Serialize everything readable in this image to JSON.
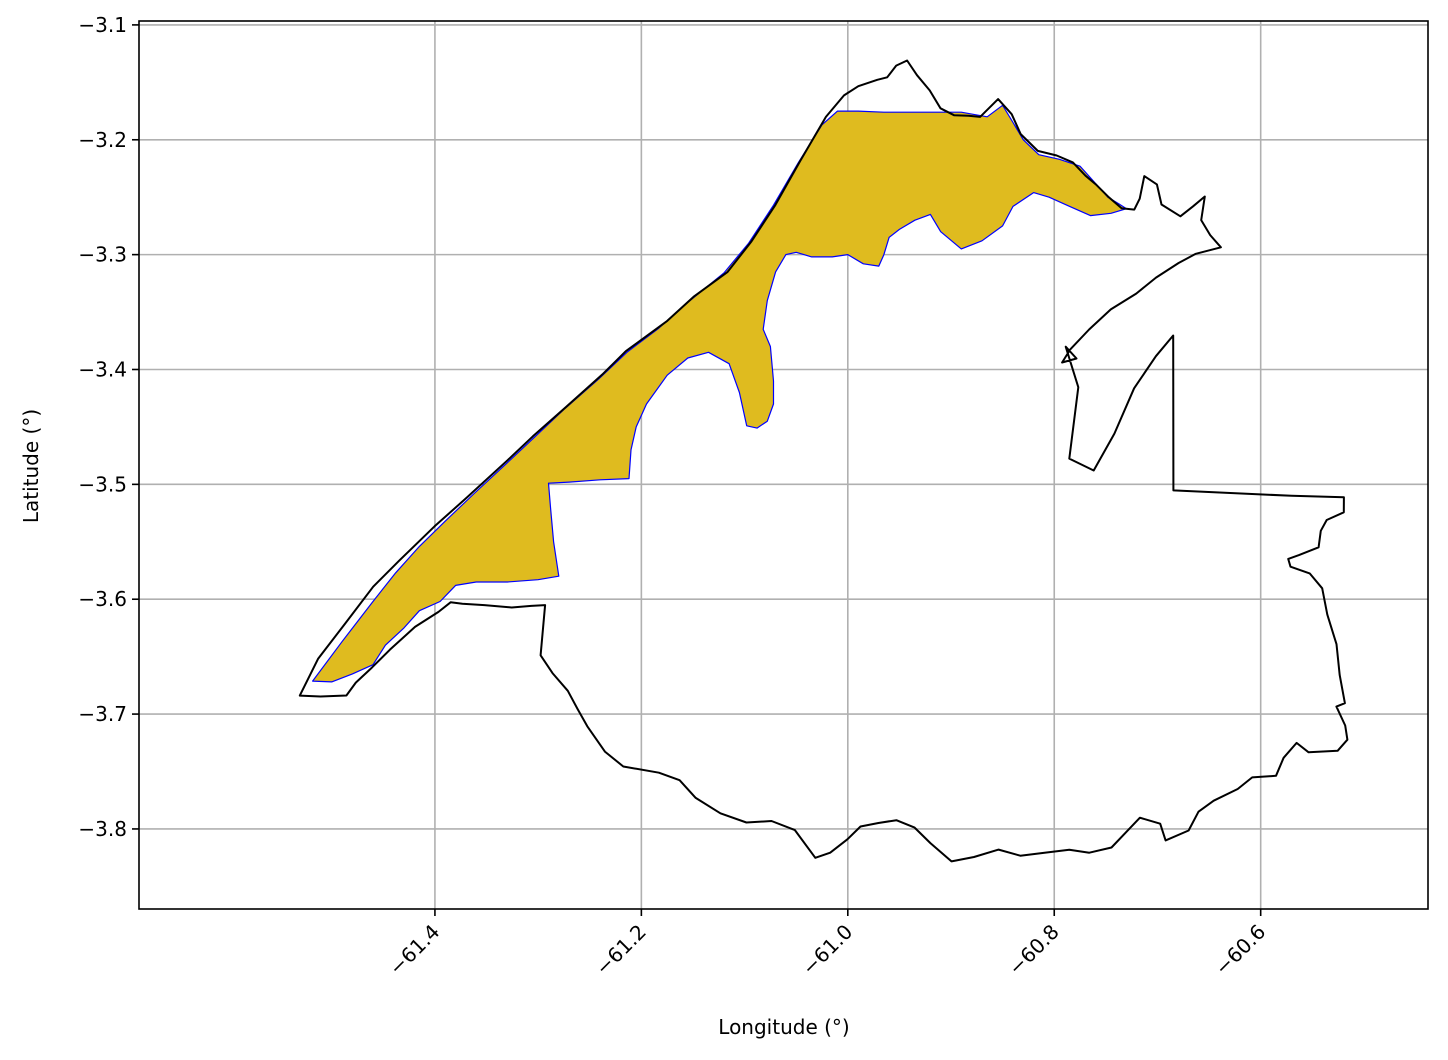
{
  "chart_data": {
    "type": "map",
    "xlabel": "Longitude (°)",
    "ylabel": "Latitude (°)",
    "xlim": [
      -61.6867,
      -60.4379
    ],
    "ylim": [
      -3.8697,
      -3.0966
    ],
    "xticks": [
      -61.4,
      -61.2,
      -61.0,
      -60.8,
      -60.6
    ],
    "xtick_labels": [
      "−61.4",
      "−61.2",
      "−61.0",
      "−60.8",
      "−60.6"
    ],
    "yticks": [
      -3.1,
      -3.2,
      -3.3,
      -3.4,
      -3.5,
      -3.6,
      -3.7,
      -3.8
    ],
    "ytick_labels": [
      "−3.1",
      "−3.2",
      "−3.3",
      "−3.4",
      "−3.5",
      "−3.6",
      "−3.7",
      "−3.8"
    ],
    "grid": true,
    "boundary": {
      "stroke": "#000000",
      "fill": "none",
      "outline": [
        [
          -61.5309,
          -3.6839
        ],
        [
          -61.5131,
          -3.6517
        ],
        [
          -61.4869,
          -3.6211
        ],
        [
          -61.4598,
          -3.5891
        ],
        [
          -61.4344,
          -3.5662
        ],
        [
          -61.4003,
          -3.5365
        ],
        [
          -61.3689,
          -3.5114
        ],
        [
          -61.3296,
          -3.479
        ],
        [
          -61.3051,
          -3.4582
        ],
        [
          -61.2737,
          -3.4332
        ],
        [
          -61.2378,
          -3.4043
        ],
        [
          -61.2151,
          -3.3841
        ],
        [
          -61.175,
          -3.3577
        ],
        [
          -61.1488,
          -3.3363
        ],
        [
          -61.1165,
          -3.315
        ],
        [
          -61.0937,
          -3.2889
        ],
        [
          -61.0701,
          -3.2567
        ],
        [
          -61.0457,
          -3.2179
        ],
        [
          -61.0212,
          -3.1801
        ],
        [
          -61.0037,
          -3.1614
        ],
        [
          -60.9898,
          -3.1534
        ],
        [
          -60.9714,
          -3.1478
        ],
        [
          -60.9618,
          -3.1456
        ],
        [
          -60.9531,
          -3.1354
        ],
        [
          -60.9426,
          -3.131
        ],
        [
          -60.933,
          -3.1438
        ],
        [
          -60.9207,
          -3.157
        ],
        [
          -60.9102,
          -3.1726
        ],
        [
          -60.8971,
          -3.1786
        ],
        [
          -60.8831,
          -3.1791
        ],
        [
          -60.8718,
          -3.1801
        ],
        [
          -60.8544,
          -3.1646
        ],
        [
          -60.8412,
          -3.1777
        ],
        [
          -60.8325,
          -3.1951
        ],
        [
          -60.8159,
          -3.2097
        ],
        [
          -60.7976,
          -3.2137
        ],
        [
          -60.7819,
          -3.2197
        ],
        [
          -60.7697,
          -3.2313
        ],
        [
          -60.7592,
          -3.2393
        ],
        [
          -60.7478,
          -3.2495
        ],
        [
          -60.7347,
          -3.2597
        ],
        [
          -60.7224,
          -3.2608
        ],
        [
          -60.7172,
          -3.2513
        ],
        [
          -60.7128,
          -3.2316
        ],
        [
          -60.7005,
          -3.2389
        ],
        [
          -60.6961,
          -3.2564
        ],
        [
          -60.6778,
          -3.2666
        ],
        [
          -60.6655,
          -3.2579
        ],
        [
          -60.6541,
          -3.2494
        ],
        [
          -60.6576,
          -3.2699
        ],
        [
          -60.6489,
          -3.283
        ],
        [
          -60.6385,
          -3.2936
        ],
        [
          -60.6629,
          -3.2993
        ],
        [
          -60.6795,
          -3.3073
        ],
        [
          -60.7014,
          -3.32
        ],
        [
          -60.7206,
          -3.3339
        ],
        [
          -60.7452,
          -3.3477
        ],
        [
          -60.7662,
          -3.3652
        ],
        [
          -60.7846,
          -3.3827
        ],
        [
          -60.7924,
          -3.3939
        ],
        [
          -60.7784,
          -3.3904
        ],
        [
          -60.7889,
          -3.3802
        ],
        [
          -60.7767,
          -3.4154
        ],
        [
          -60.7854,
          -3.4776
        ],
        [
          -60.7618,
          -3.4879
        ],
        [
          -60.7417,
          -3.4558
        ],
        [
          -60.7226,
          -3.4164
        ],
        [
          -60.7015,
          -3.3884
        ],
        [
          -60.6848,
          -3.3704
        ],
        [
          -60.6846,
          -3.5053
        ],
        [
          -60.57,
          -3.51
        ],
        [
          -60.5194,
          -3.5112
        ],
        [
          -60.5195,
          -3.5243
        ],
        [
          -60.536,
          -3.531
        ],
        [
          -60.5418,
          -3.5404
        ],
        [
          -60.5439,
          -3.5548
        ],
        [
          -60.5629,
          -3.5616
        ],
        [
          -60.5733,
          -3.5649
        ],
        [
          -60.5711,
          -3.5717
        ],
        [
          -60.5525,
          -3.5775
        ],
        [
          -60.5404,
          -3.5905
        ],
        [
          -60.5355,
          -3.6134
        ],
        [
          -60.5265,
          -3.6392
        ],
        [
          -60.5234,
          -3.6661
        ],
        [
          -60.5184,
          -3.6905
        ],
        [
          -60.5266,
          -3.6935
        ],
        [
          -60.5181,
          -3.7099
        ],
        [
          -60.516,
          -3.7223
        ],
        [
          -60.5255,
          -3.732
        ],
        [
          -60.5536,
          -3.7333
        ],
        [
          -60.5652,
          -3.7251
        ],
        [
          -60.5778,
          -3.7381
        ],
        [
          -60.5852,
          -3.7537
        ],
        [
          -60.6082,
          -3.7551
        ],
        [
          -60.6223,
          -3.7652
        ],
        [
          -60.6455,
          -3.7754
        ],
        [
          -60.6602,
          -3.785
        ],
        [
          -60.6698,
          -3.8014
        ],
        [
          -60.6921,
          -3.81
        ],
        [
          -60.6973,
          -3.7954
        ],
        [
          -60.717,
          -3.7902
        ],
        [
          -60.7297,
          -3.8021
        ],
        [
          -60.7445,
          -3.8162
        ],
        [
          -60.766,
          -3.8207
        ],
        [
          -60.7854,
          -3.8181
        ],
        [
          -60.8074,
          -3.8205
        ],
        [
          -60.8329,
          -3.8233
        ],
        [
          -60.8539,
          -3.818
        ],
        [
          -60.8777,
          -3.8244
        ],
        [
          -60.8995,
          -3.8283
        ],
        [
          -60.92,
          -3.8123
        ],
        [
          -60.9353,
          -3.7988
        ],
        [
          -60.9529,
          -3.7924
        ],
        [
          -60.9704,
          -3.7948
        ],
        [
          -60.9877,
          -3.7979
        ],
        [
          -61.0004,
          -3.809
        ],
        [
          -61.0171,
          -3.8207
        ],
        [
          -61.0315,
          -3.8251
        ],
        [
          -61.0513,
          -3.801
        ],
        [
          -61.0739,
          -3.7931
        ],
        [
          -61.0982,
          -3.7944
        ],
        [
          -61.1234,
          -3.7864
        ],
        [
          -61.1474,
          -3.773
        ],
        [
          -61.163,
          -3.7576
        ],
        [
          -61.183,
          -3.751
        ],
        [
          -61.2175,
          -3.7456
        ],
        [
          -61.2353,
          -3.7327
        ],
        [
          -61.2524,
          -3.7106
        ],
        [
          -61.2619,
          -3.6955
        ],
        [
          -61.2713,
          -3.6797
        ],
        [
          -61.2861,
          -3.6643
        ],
        [
          -61.2976,
          -3.6488
        ],
        [
          -61.2933,
          -3.6051
        ],
        [
          -61.3066,
          -3.6058
        ],
        [
          -61.3256,
          -3.6072
        ],
        [
          -61.3521,
          -3.6051
        ],
        [
          -61.3734,
          -3.604
        ],
        [
          -61.3848,
          -3.6027
        ],
        [
          -61.3965,
          -3.611
        ],
        [
          -61.4193,
          -3.6241
        ],
        [
          -61.4437,
          -3.644
        ],
        [
          -61.4611,
          -3.6595
        ],
        [
          -61.4767,
          -3.6726
        ],
        [
          -61.4858,
          -3.6838
        ],
        [
          -61.5109,
          -3.6847
        ],
        [
          -61.5309,
          -3.6839
        ]
      ]
    },
    "highlight": {
      "fill": "#dfbb1f",
      "stroke": "#0000ff",
      "outline": [
        [
          -61.5185,
          -3.6713
        ],
        [
          -61.49,
          -3.637
        ],
        [
          -61.461,
          -3.603
        ],
        [
          -61.438,
          -3.577
        ],
        [
          -61.415,
          -3.554
        ],
        [
          -61.39,
          -3.532
        ],
        [
          -61.362,
          -3.508
        ],
        [
          -61.332,
          -3.483
        ],
        [
          -61.306,
          -3.461
        ],
        [
          -61.274,
          -3.434
        ],
        [
          -61.241,
          -3.408
        ],
        [
          -61.214,
          -3.385
        ],
        [
          -61.183,
          -3.364
        ],
        [
          -61.153,
          -3.34
        ],
        [
          -61.12,
          -3.316
        ],
        [
          -61.096,
          -3.29
        ],
        [
          -61.072,
          -3.257
        ],
        [
          -61.048,
          -3.22
        ],
        [
          -61.025,
          -3.187
        ],
        [
          -61.01,
          -3.175
        ],
        [
          -60.99,
          -3.175
        ],
        [
          -60.965,
          -3.176
        ],
        [
          -60.94,
          -3.176
        ],
        [
          -60.915,
          -3.176
        ],
        [
          -60.89,
          -3.176
        ],
        [
          -60.865,
          -3.18
        ],
        [
          -60.85,
          -3.17
        ],
        [
          -60.84,
          -3.185
        ],
        [
          -60.83,
          -3.2
        ],
        [
          -60.815,
          -3.213
        ],
        [
          -60.795,
          -3.217
        ],
        [
          -60.775,
          -3.223
        ],
        [
          -60.76,
          -3.238
        ],
        [
          -60.748,
          -3.25
        ],
        [
          -60.737,
          -3.256
        ],
        [
          -60.73,
          -3.26
        ],
        [
          -60.745,
          -3.264
        ],
        [
          -60.765,
          -3.266
        ],
        [
          -60.785,
          -3.258
        ],
        [
          -60.805,
          -3.25
        ],
        [
          -60.82,
          -3.246
        ],
        [
          -60.84,
          -3.258
        ],
        [
          -60.85,
          -3.275
        ],
        [
          -60.87,
          -3.288
        ],
        [
          -60.89,
          -3.295
        ],
        [
          -60.91,
          -3.28
        ],
        [
          -60.92,
          -3.265
        ],
        [
          -60.935,
          -3.27
        ],
        [
          -60.95,
          -3.278
        ],
        [
          -60.96,
          -3.285
        ],
        [
          -60.965,
          -3.3
        ],
        [
          -60.97,
          -3.31
        ],
        [
          -60.985,
          -3.308
        ],
        [
          -61.0,
          -3.3
        ],
        [
          -61.015,
          -3.302
        ],
        [
          -61.035,
          -3.302
        ],
        [
          -61.05,
          -3.298
        ],
        [
          -61.06,
          -3.3
        ],
        [
          -61.07,
          -3.315
        ],
        [
          -61.078,
          -3.34
        ],
        [
          -61.082,
          -3.365
        ],
        [
          -61.075,
          -3.38
        ],
        [
          -61.072,
          -3.41
        ],
        [
          -61.072,
          -3.43
        ],
        [
          -61.078,
          -3.445
        ],
        [
          -61.088,
          -3.451
        ],
        [
          -61.098,
          -3.449
        ],
        [
          -61.105,
          -3.42
        ],
        [
          -61.115,
          -3.395
        ],
        [
          -61.135,
          -3.385
        ],
        [
          -61.155,
          -3.39
        ],
        [
          -61.175,
          -3.405
        ],
        [
          -61.195,
          -3.43
        ],
        [
          -61.205,
          -3.45
        ],
        [
          -61.21,
          -3.47
        ],
        [
          -61.212,
          -3.495
        ],
        [
          -61.24,
          -3.496
        ],
        [
          -61.27,
          -3.498
        ],
        [
          -61.29,
          -3.499
        ],
        [
          -61.288,
          -3.52
        ],
        [
          -61.285,
          -3.55
        ],
        [
          -61.28,
          -3.58
        ],
        [
          -61.3,
          -3.583
        ],
        [
          -61.33,
          -3.585
        ],
        [
          -61.36,
          -3.585
        ],
        [
          -61.38,
          -3.588
        ],
        [
          -61.395,
          -3.602
        ],
        [
          -61.415,
          -3.61
        ],
        [
          -61.43,
          -3.625
        ],
        [
          -61.448,
          -3.64
        ],
        [
          -61.46,
          -3.657
        ],
        [
          -61.48,
          -3.665
        ],
        [
          -61.5,
          -3.672
        ],
        [
          -61.5185,
          -3.6713
        ]
      ]
    }
  }
}
